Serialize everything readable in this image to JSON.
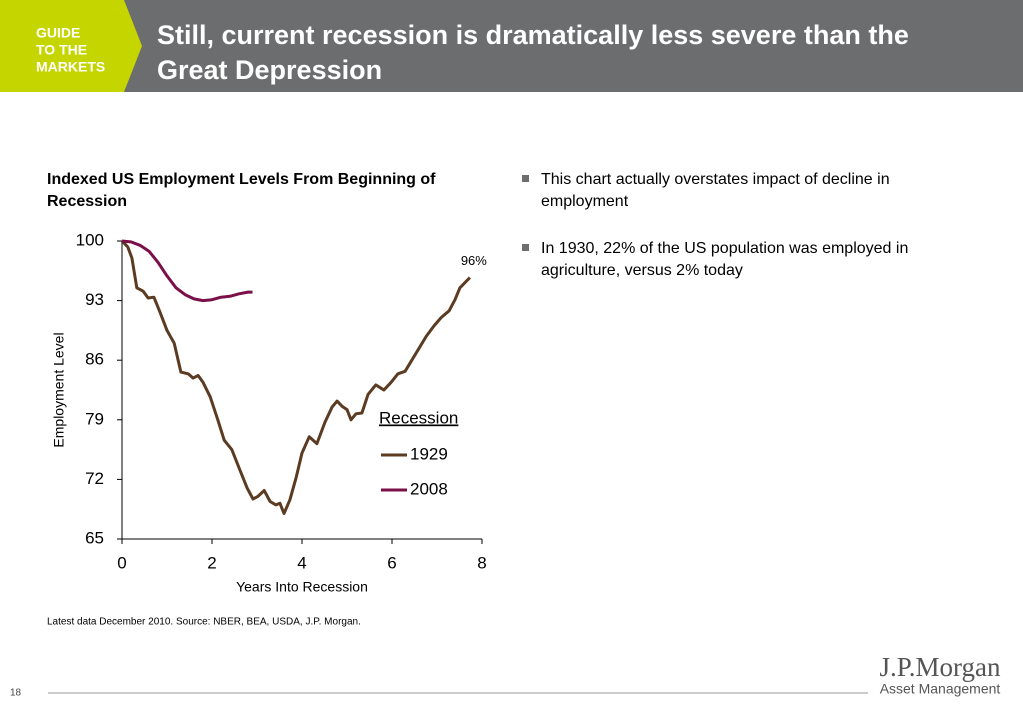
{
  "header": {
    "logo": [
      "GUIDE",
      "TO THE",
      "MARKETS"
    ],
    "title": "Still, current recession is dramatically less severe than the Great Depression"
  },
  "chart_data": {
    "type": "line",
    "title": "Indexed US Employment Levels From Beginning of Recession",
    "x_label": "Years Into Recession",
    "y_label": "Employment Level",
    "xlim": [
      0,
      8
    ],
    "xticks": [
      0,
      2,
      4,
      6,
      8
    ],
    "ylim": [
      65,
      100
    ],
    "yticks": [
      65,
      72,
      79,
      86,
      93,
      100
    ],
    "legend_title": "Recession",
    "legend": "lower right",
    "annotation": "96%",
    "series": [
      {
        "name": "1929",
        "color": "#5b3b22",
        "x": [
          0,
          0.13,
          0.22,
          0.33,
          0.47,
          0.58,
          0.71,
          0.84,
          1.0,
          1.16,
          1.31,
          1.47,
          1.58,
          1.69,
          1.8,
          1.96,
          2.13,
          2.27,
          2.44,
          2.62,
          2.78,
          2.91,
          3.02,
          3.16,
          3.29,
          3.42,
          3.51,
          3.6,
          3.73,
          3.87,
          4.0,
          4.16,
          4.33,
          4.51,
          4.67,
          4.78,
          4.89,
          5.0,
          5.09,
          5.2,
          5.33,
          5.47,
          5.64,
          5.82,
          5.98,
          6.13,
          6.29,
          6.44,
          6.6,
          6.76,
          6.93,
          7.09,
          7.27,
          7.4,
          7.51,
          7.62,
          7.73
        ],
        "values": [
          100,
          99.3,
          98,
          94.5,
          94.1,
          93.3,
          93.4,
          91.7,
          89.5,
          88,
          84.6,
          84.4,
          83.9,
          84.2,
          83.4,
          81.7,
          79,
          76.6,
          75.5,
          73.1,
          71,
          69.7,
          70,
          70.7,
          69.4,
          69,
          69.2,
          68,
          69.6,
          72.2,
          75.1,
          77,
          76.2,
          78.7,
          80.5,
          81.2,
          80.6,
          80.2,
          79,
          79.7,
          79.8,
          82,
          83.1,
          82.5,
          83.4,
          84.4,
          84.7,
          86,
          87.4,
          88.8,
          90,
          91,
          91.8,
          93.1,
          94.5,
          95.1,
          95.7
        ]
      },
      {
        "name": "2008",
        "color": "#7b1049",
        "x": [
          0,
          0.2,
          0.4,
          0.6,
          0.8,
          1.0,
          1.2,
          1.4,
          1.6,
          1.8,
          2.0,
          2.2,
          2.4,
          2.6,
          2.8,
          2.9
        ],
        "values": [
          100,
          99.9,
          99.5,
          98.8,
          97.5,
          95.9,
          94.5,
          93.7,
          93.2,
          93.0,
          93.1,
          93.4,
          93.5,
          93.8,
          94.0,
          94.0
        ]
      }
    ]
  },
  "bullets": [
    "This chart actually overstates impact of decline in employment",
    "In 1930, 22% of the US population was employed in agriculture, versus 2% today"
  ],
  "source": "Latest data December 2010. Source:  NBER, BEA, USDA, J.P. Morgan.",
  "page_number": "18",
  "brand": {
    "name": "J.P.Morgan",
    "division": "Asset Management"
  }
}
